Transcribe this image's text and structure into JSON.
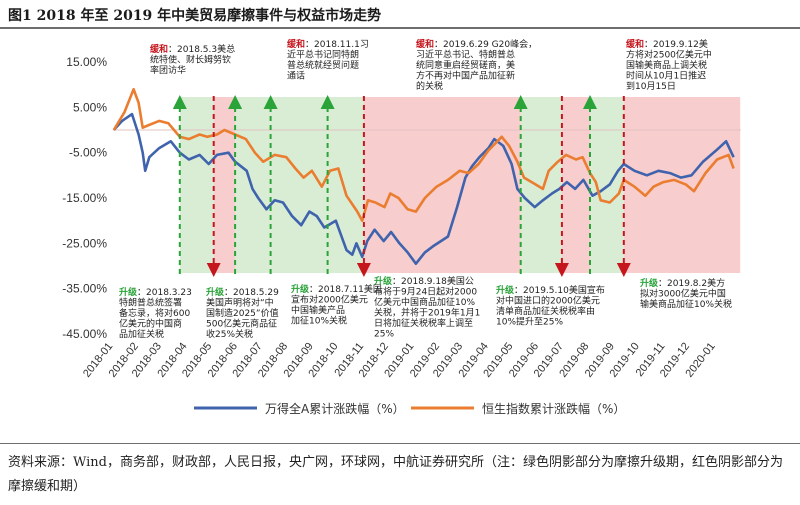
{
  "figure": {
    "title": "图1  2018 年至 2019 年中美贸易摩擦事件与权益市场走势",
    "source": "资料来源：Wind，商务部，财政部，人民日报，央广网，环球网，中航证券研究所（注：绿色阴影部分为摩擦升级期，红色阴影部分为摩擦缓和期）"
  },
  "colors": {
    "series_a": "#3f63ad",
    "series_b": "#ea7d2f",
    "green_band": "#d9edd5",
    "red_band": "#f8cdcd",
    "green_line": "#2aa339",
    "red_line": "#c5161d",
    "annotation_label": "#c5161d"
  },
  "chart_data": {
    "type": "line",
    "title": "",
    "xlabel": "",
    "ylabel": "",
    "x_range": [
      "2018-01-01",
      "2020-02-01"
    ],
    "ylim": [
      -45,
      15
    ],
    "y_ticks": [
      "15.00%",
      "5.00%",
      "-5.00%",
      "-15.00%",
      "-25.00%",
      "-35.00%",
      "-45.00%"
    ],
    "y_tick_values": [
      15,
      5,
      -5,
      -15,
      -25,
      -35,
      -45
    ],
    "x_ticks": [
      "2018-01",
      "2018-02",
      "2018-03",
      "2018-04",
      "2018-05",
      "2018-06",
      "2018-07",
      "2018-08",
      "2018-09",
      "2018-10",
      "2018-11",
      "2018-12",
      "2019-01",
      "2019-02",
      "2019-03",
      "2019-04",
      "2019-05",
      "2019-06",
      "2019-07",
      "2019-08",
      "2019-09",
      "2019-10",
      "2019-11",
      "2019-12",
      "2020-01"
    ],
    "legend_position": "bottom",
    "series": [
      {
        "name": "万得全A累计涨跌幅（%）",
        "points": [
          [
            "2018-01-02",
            0
          ],
          [
            "2018-01-12",
            2
          ],
          [
            "2018-01-24",
            3.5
          ],
          [
            "2018-02-01",
            -1
          ],
          [
            "2018-02-06",
            -5
          ],
          [
            "2018-02-09",
            -9
          ],
          [
            "2018-02-14",
            -6
          ],
          [
            "2018-02-26",
            -4
          ],
          [
            "2018-03-12",
            -2.5
          ],
          [
            "2018-03-23",
            -5
          ],
          [
            "2018-04-03",
            -6.5
          ],
          [
            "2018-04-16",
            -5.5
          ],
          [
            "2018-04-27",
            -7.5
          ],
          [
            "2018-05-07",
            -5.5
          ],
          [
            "2018-05-21",
            -5
          ],
          [
            "2018-05-29",
            -7
          ],
          [
            "2018-06-12",
            -9
          ],
          [
            "2018-06-19",
            -13
          ],
          [
            "2018-06-26",
            -15
          ],
          [
            "2018-07-06",
            -17.5
          ],
          [
            "2018-07-16",
            -15.5
          ],
          [
            "2018-07-26",
            -16
          ],
          [
            "2018-08-06",
            -19
          ],
          [
            "2018-08-17",
            -21
          ],
          [
            "2018-08-27",
            -18
          ],
          [
            "2018-09-05",
            -19
          ],
          [
            "2018-09-14",
            -21.5
          ],
          [
            "2018-09-28",
            -20
          ],
          [
            "2018-10-11",
            -26.5
          ],
          [
            "2018-10-18",
            -27.5
          ],
          [
            "2018-10-23",
            -25
          ],
          [
            "2018-10-30",
            -28
          ],
          [
            "2018-11-05",
            -24.5
          ],
          [
            "2018-11-14",
            -22
          ],
          [
            "2018-11-25",
            -24.5
          ],
          [
            "2018-12-04",
            -22.5
          ],
          [
            "2018-12-14",
            -25
          ],
          [
            "2018-12-24",
            -27
          ],
          [
            "2019-01-03",
            -29.5
          ],
          [
            "2019-01-14",
            -27
          ],
          [
            "2019-01-25",
            -25.5
          ],
          [
            "2019-02-11",
            -23.5
          ],
          [
            "2019-02-22",
            -17
          ],
          [
            "2019-03-04",
            -10.5
          ],
          [
            "2019-03-12",
            -8
          ],
          [
            "2019-03-21",
            -6
          ],
          [
            "2019-04-01",
            -4
          ],
          [
            "2019-04-08",
            -2
          ],
          [
            "2019-04-19",
            -3.5
          ],
          [
            "2019-04-29",
            -7.5
          ],
          [
            "2019-05-06",
            -13
          ],
          [
            "2019-05-15",
            -15
          ],
          [
            "2019-05-27",
            -17
          ],
          [
            "2019-06-06",
            -15.5
          ],
          [
            "2019-06-17",
            -14
          ],
          [
            "2019-06-26",
            -13
          ],
          [
            "2019-07-05",
            -11.5
          ],
          [
            "2019-07-15",
            -13
          ],
          [
            "2019-07-25",
            -11
          ],
          [
            "2019-08-05",
            -14.5
          ],
          [
            "2019-08-15",
            -13.5
          ],
          [
            "2019-08-26",
            -12
          ],
          [
            "2019-09-05",
            -9
          ],
          [
            "2019-09-12",
            -7.5
          ],
          [
            "2019-09-25",
            -9
          ],
          [
            "2019-10-10",
            -10
          ],
          [
            "2019-10-24",
            -9
          ],
          [
            "2019-11-07",
            -9.5
          ],
          [
            "2019-11-20",
            -10.5
          ],
          [
            "2019-12-03",
            -10
          ],
          [
            "2019-12-17",
            -7
          ],
          [
            "2020-01-02",
            -4.5
          ],
          [
            "2020-01-14",
            -2.5
          ],
          [
            "2020-01-23",
            -6
          ]
        ]
      },
      {
        "name": "恒生指数累计涨跌幅（%）",
        "points": [
          [
            "2018-01-02",
            0
          ],
          [
            "2018-01-15",
            4
          ],
          [
            "2018-01-26",
            9
          ],
          [
            "2018-02-01",
            6
          ],
          [
            "2018-02-06",
            0.5
          ],
          [
            "2018-02-12",
            1
          ],
          [
            "2018-02-26",
            2
          ],
          [
            "2018-03-09",
            1.5
          ],
          [
            "2018-03-23",
            -1.5
          ],
          [
            "2018-04-03",
            -2
          ],
          [
            "2018-04-16",
            -1
          ],
          [
            "2018-04-25",
            -1.5
          ],
          [
            "2018-05-07",
            -1
          ],
          [
            "2018-05-16",
            0
          ],
          [
            "2018-05-29",
            -1
          ],
          [
            "2018-06-11",
            -2
          ],
          [
            "2018-06-22",
            -5
          ],
          [
            "2018-07-02",
            -7
          ],
          [
            "2018-07-16",
            -5.5
          ],
          [
            "2018-07-30",
            -6
          ],
          [
            "2018-08-10",
            -8.5
          ],
          [
            "2018-08-20",
            -10.5
          ],
          [
            "2018-08-30",
            -9
          ],
          [
            "2018-09-11",
            -12.5
          ],
          [
            "2018-09-21",
            -9
          ],
          [
            "2018-10-01",
            -8.5
          ],
          [
            "2018-10-11",
            -14.5
          ],
          [
            "2018-10-24",
            -18
          ],
          [
            "2018-10-30",
            -20
          ],
          [
            "2018-11-06",
            -15.5
          ],
          [
            "2018-11-15",
            -16
          ],
          [
            "2018-11-26",
            -17
          ],
          [
            "2018-12-03",
            -14
          ],
          [
            "2018-12-13",
            -15
          ],
          [
            "2018-12-24",
            -17.5
          ],
          [
            "2019-01-03",
            -18
          ],
          [
            "2019-01-14",
            -15
          ],
          [
            "2019-01-28",
            -12.5
          ],
          [
            "2019-02-11",
            -11
          ],
          [
            "2019-02-25",
            -9
          ],
          [
            "2019-03-08",
            -9.5
          ],
          [
            "2019-03-20",
            -7.5
          ],
          [
            "2019-04-01",
            -4.5
          ],
          [
            "2019-04-09",
            -3
          ],
          [
            "2019-04-17",
            -1.5
          ],
          [
            "2019-04-26",
            -3.5
          ],
          [
            "2019-05-06",
            -7
          ],
          [
            "2019-05-14",
            -10.5
          ],
          [
            "2019-05-28",
            -12
          ],
          [
            "2019-06-06",
            -13
          ],
          [
            "2019-06-13",
            -9
          ],
          [
            "2019-06-24",
            -7
          ],
          [
            "2019-07-04",
            -5.5
          ],
          [
            "2019-07-16",
            -6.5
          ],
          [
            "2019-07-24",
            -6
          ],
          [
            "2019-08-02",
            -9.5
          ],
          [
            "2019-08-09",
            -11.5
          ],
          [
            "2019-08-15",
            -15.5
          ],
          [
            "2019-08-26",
            -16
          ],
          [
            "2019-09-06",
            -14
          ],
          [
            "2019-09-12",
            -11
          ],
          [
            "2019-09-25",
            -12.5
          ],
          [
            "2019-10-08",
            -14.5
          ],
          [
            "2019-10-18",
            -12.5
          ],
          [
            "2019-10-30",
            -11.5
          ],
          [
            "2019-11-12",
            -11
          ],
          [
            "2019-11-26",
            -12
          ],
          [
            "2019-12-06",
            -13.5
          ],
          [
            "2019-12-20",
            -9.5
          ],
          [
            "2020-01-03",
            -6.5
          ],
          [
            "2020-01-17",
            -5.5
          ],
          [
            "2020-01-23",
            -8.5
          ]
        ]
      }
    ],
    "bands": [
      {
        "type": "green",
        "start": "2018-03-23",
        "end": "2018-05-03"
      },
      {
        "type": "red",
        "start": "2018-05-03",
        "end": "2018-05-29"
      },
      {
        "type": "green",
        "start": "2018-05-29",
        "end": "2018-07-11"
      },
      {
        "type": "green",
        "start": "2018-07-11",
        "end": "2018-09-18"
      },
      {
        "type": "green",
        "start": "2018-09-18",
        "end": "2018-11-01"
      },
      {
        "type": "red",
        "start": "2018-11-01",
        "end": "2019-05-10"
      },
      {
        "type": "green",
        "start": "2019-05-10",
        "end": "2019-06-29"
      },
      {
        "type": "red",
        "start": "2019-06-29",
        "end": "2019-08-02"
      },
      {
        "type": "green",
        "start": "2019-08-02",
        "end": "2019-09-12"
      },
      {
        "type": "red",
        "start": "2019-09-12",
        "end": "2020-01-31"
      }
    ],
    "markers": [
      {
        "type": "green",
        "date": "2018-03-23"
      },
      {
        "type": "red",
        "date": "2018-05-03"
      },
      {
        "type": "green",
        "date": "2018-05-29"
      },
      {
        "type": "green",
        "date": "2018-07-11"
      },
      {
        "type": "green",
        "date": "2018-09-18"
      },
      {
        "type": "red",
        "date": "2018-11-01"
      },
      {
        "type": "green",
        "date": "2019-05-10"
      },
      {
        "type": "red",
        "date": "2019-06-29"
      },
      {
        "type": "green",
        "date": "2019-08-02"
      },
      {
        "type": "red",
        "date": "2019-09-12"
      }
    ],
    "annotations": [
      {
        "kind": "缓和",
        "lines": [
          "缓和：2018.5.3美总",
          "统特使、财长姆努钦",
          "率团访华"
        ]
      },
      {
        "kind": "缓和",
        "lines": [
          "缓和：2018.11.1习",
          "近平总书记同特朗",
          "普总统就经贸问题",
          "通话"
        ]
      },
      {
        "kind": "缓和",
        "lines": [
          "缓和：2019.6.29 G20峰会，",
          "习近平总书记、特朗普总",
          "统同意重启经贸磋商，美",
          "方不再对中国产品加征新",
          "的关税"
        ]
      },
      {
        "kind": "缓和",
        "lines": [
          "缓和：2019.9.12美",
          "方将对2500亿美元中",
          "国输美商品上调关税",
          "时间从10月1日推迟",
          "到10月15日"
        ]
      },
      {
        "kind": "升级",
        "lines": [
          "升级：2018.3.23",
          "特朗普总统签署",
          "备忘录，将对600",
          "亿美元的中国商",
          "品加征关税"
        ]
      },
      {
        "kind": "升级",
        "lines": [
          "升级：2018.5.29",
          "美国声明将对“中",
          "国制造2025”价值",
          "500亿美元商品征",
          "收25%关税"
        ]
      },
      {
        "kind": "升级",
        "lines": [
          "升级：2018.7.11美国",
          "宣布对2000亿美元",
          "中国输美产品",
          "加征10%关税"
        ]
      },
      {
        "kind": "升级",
        "lines": [
          "升级：2018.9.18美国公",
          "布将于9月24日起对2000",
          "亿美元中国商品加征10%",
          "关税，并将于2019年1月1",
          "日将加征关税税率上调至",
          "25%"
        ]
      },
      {
        "kind": "升级",
        "lines": [
          "升级：2019.5.10美国宣布",
          "对中国进口的2000亿美元",
          "清单商品加征关税税率由",
          "10%提升至25%"
        ]
      },
      {
        "kind": "升级",
        "lines": [
          "升级：2019.8.2美方",
          "拟对3000亿美元中国",
          "输美商品加征10%关税"
        ]
      }
    ]
  }
}
